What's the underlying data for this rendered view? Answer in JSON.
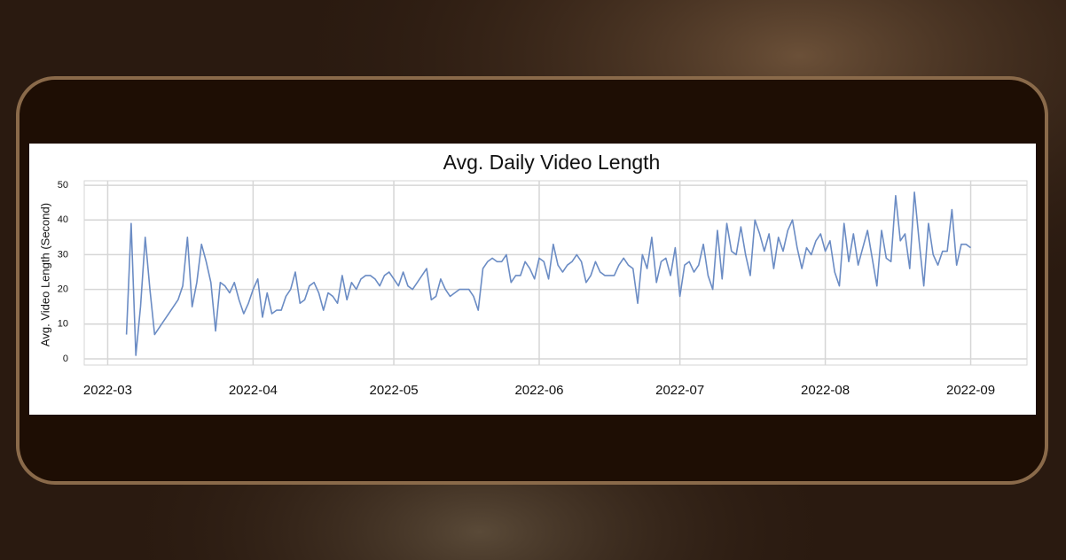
{
  "chart_data": {
    "type": "line",
    "title": "Avg. Daily Video Length",
    "ylabel": "Avg. Video Length (Second)",
    "x": [
      "2022-03-05",
      "2022-03-06",
      "2022-03-07",
      "2022-03-08",
      "2022-03-09",
      "2022-03-10",
      "2022-03-11",
      "2022-03-12",
      "2022-03-13",
      "2022-03-14",
      "2022-03-15",
      "2022-03-16",
      "2022-03-17",
      "2022-03-18",
      "2022-03-19",
      "2022-03-20",
      "2022-03-21",
      "2022-03-22",
      "2022-03-23",
      "2022-03-24",
      "2022-03-25",
      "2022-03-26",
      "2022-03-27",
      "2022-03-28",
      "2022-03-29",
      "2022-03-30",
      "2022-03-31",
      "2022-04-01",
      "2022-04-02",
      "2022-04-03",
      "2022-04-04",
      "2022-04-05",
      "2022-04-06",
      "2022-04-07",
      "2022-04-08",
      "2022-04-09",
      "2022-04-10",
      "2022-04-11",
      "2022-04-12",
      "2022-04-13",
      "2022-04-14",
      "2022-04-15",
      "2022-04-16",
      "2022-04-17",
      "2022-04-18",
      "2022-04-19",
      "2022-04-20",
      "2022-04-21",
      "2022-04-22",
      "2022-04-23",
      "2022-04-24",
      "2022-04-25",
      "2022-04-26",
      "2022-04-27",
      "2022-04-28",
      "2022-04-29",
      "2022-04-30",
      "2022-05-01",
      "2022-05-02",
      "2022-05-03",
      "2022-05-04",
      "2022-05-05",
      "2022-05-06",
      "2022-05-07",
      "2022-05-08",
      "2022-05-09",
      "2022-05-10",
      "2022-05-11",
      "2022-05-12",
      "2022-05-13",
      "2022-05-14",
      "2022-05-15",
      "2022-05-16",
      "2022-05-17",
      "2022-05-18",
      "2022-05-19",
      "2022-05-20",
      "2022-05-21",
      "2022-05-22",
      "2022-05-23",
      "2022-05-24",
      "2022-05-25",
      "2022-05-26",
      "2022-05-27",
      "2022-05-28",
      "2022-05-29",
      "2022-05-30",
      "2022-05-31",
      "2022-06-01",
      "2022-06-02",
      "2022-06-03",
      "2022-06-04",
      "2022-06-05",
      "2022-06-06",
      "2022-06-07",
      "2022-06-08",
      "2022-06-09",
      "2022-06-10",
      "2022-06-11",
      "2022-06-12",
      "2022-06-13",
      "2022-06-14",
      "2022-06-15",
      "2022-06-16",
      "2022-06-17",
      "2022-06-18",
      "2022-06-19",
      "2022-06-20",
      "2022-06-21",
      "2022-06-22",
      "2022-06-23",
      "2022-06-24",
      "2022-06-25",
      "2022-06-26",
      "2022-06-27",
      "2022-06-28",
      "2022-06-29",
      "2022-06-30",
      "2022-07-01",
      "2022-07-02",
      "2022-07-03",
      "2022-07-04",
      "2022-07-05",
      "2022-07-06",
      "2022-07-07",
      "2022-07-08",
      "2022-07-09",
      "2022-07-10",
      "2022-07-11",
      "2022-07-12",
      "2022-07-13",
      "2022-07-14",
      "2022-07-15",
      "2022-07-16",
      "2022-07-17",
      "2022-07-18",
      "2022-07-19",
      "2022-07-20",
      "2022-07-21",
      "2022-07-22",
      "2022-07-23",
      "2022-07-24",
      "2022-07-25",
      "2022-07-26",
      "2022-07-27",
      "2022-07-28",
      "2022-07-29",
      "2022-07-30",
      "2022-07-31",
      "2022-08-01",
      "2022-08-02",
      "2022-08-03",
      "2022-08-04",
      "2022-08-05",
      "2022-08-06",
      "2022-08-07",
      "2022-08-08",
      "2022-08-09",
      "2022-08-10",
      "2022-08-11",
      "2022-08-12",
      "2022-08-13",
      "2022-08-14",
      "2022-08-15",
      "2022-08-16",
      "2022-08-17",
      "2022-08-18",
      "2022-08-19",
      "2022-08-20",
      "2022-08-21",
      "2022-08-22",
      "2022-08-23",
      "2022-08-24",
      "2022-08-25",
      "2022-08-26",
      "2022-08-27",
      "2022-08-28",
      "2022-08-29",
      "2022-08-30",
      "2022-08-31",
      "2022-09-01"
    ],
    "values": [
      7,
      39,
      1,
      15,
      35,
      20,
      7,
      9,
      11,
      13,
      15,
      17,
      21,
      35,
      15,
      22,
      33,
      28,
      22,
      8,
      22,
      21,
      19,
      22,
      17,
      13,
      16,
      20,
      23,
      12,
      19,
      13,
      14,
      14,
      18,
      20,
      25,
      16,
      17,
      21,
      22,
      19,
      14,
      19,
      18,
      16,
      24,
      17,
      22,
      20,
      23,
      24,
      24,
      23,
      21,
      24,
      25,
      23,
      21,
      25,
      21,
      20,
      22,
      24,
      26,
      17,
      18,
      23,
      20,
      18,
      19,
      20,
      20,
      20,
      18,
      14,
      26,
      28,
      29,
      28,
      28,
      30,
      22,
      24,
      24,
      28,
      26,
      23,
      29,
      28,
      23,
      33,
      27,
      25,
      27,
      28,
      30,
      28,
      22,
      24,
      28,
      25,
      24,
      24,
      24,
      27,
      29,
      27,
      26,
      16,
      30,
      26,
      35,
      22,
      28,
      29,
      24,
      32,
      18,
      27,
      28,
      25,
      27,
      33,
      24,
      20,
      37,
      23,
      39,
      31,
      30,
      38,
      30,
      24,
      40,
      36,
      31,
      36,
      26,
      35,
      31,
      37,
      40,
      32,
      26,
      32,
      30,
      34,
      36,
      31,
      34,
      25,
      21,
      39,
      28,
      36,
      27,
      32,
      37,
      29,
      21,
      37,
      29,
      28,
      47,
      34,
      36,
      26,
      48,
      34,
      21,
      39,
      30,
      27,
      31,
      31,
      43,
      27,
      33,
      33,
      32
    ],
    "color": "#6b8cc4",
    "xlim": [
      "2022-02-24",
      "2022-09-13"
    ],
    "xticks": [
      "2022-03",
      "2022-04",
      "2022-05",
      "2022-06",
      "2022-07",
      "2022-08",
      "2022-09"
    ],
    "ylim": [
      -1.8,
      51.3
    ],
    "yticks": [
      0,
      10,
      20,
      30,
      40,
      50
    ],
    "grid": true
  }
}
